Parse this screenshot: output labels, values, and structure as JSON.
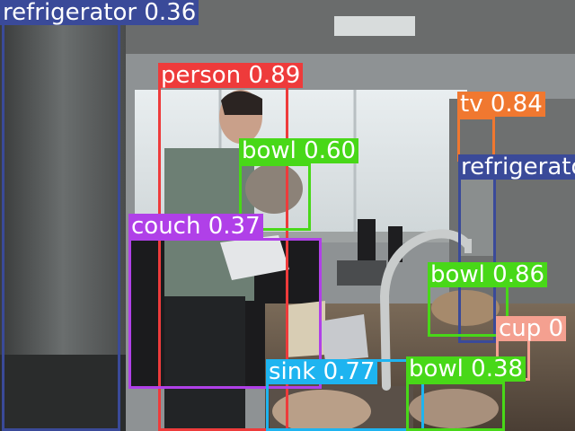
{
  "detections": [
    {
      "label": "refrigerator 0.36",
      "color": "#3a4a99"
    },
    {
      "label": "person 0.89",
      "color": "#ee3b3b"
    },
    {
      "label": "tv 0.84",
      "color": "#f07830"
    },
    {
      "label": "bowl 0.60",
      "color": "#48d818"
    },
    {
      "label": "refrigerator",
      "color": "#3a4a99"
    },
    {
      "label": "couch 0.37",
      "color": "#b040e8"
    },
    {
      "label": "bowl 0.86",
      "color": "#48d818"
    },
    {
      "label": "cup 0",
      "color": "#f4a090"
    },
    {
      "label": "sink 0.77",
      "color": "#1eb4f0"
    },
    {
      "label": "bowl 0.38",
      "color": "#48d818"
    }
  ]
}
